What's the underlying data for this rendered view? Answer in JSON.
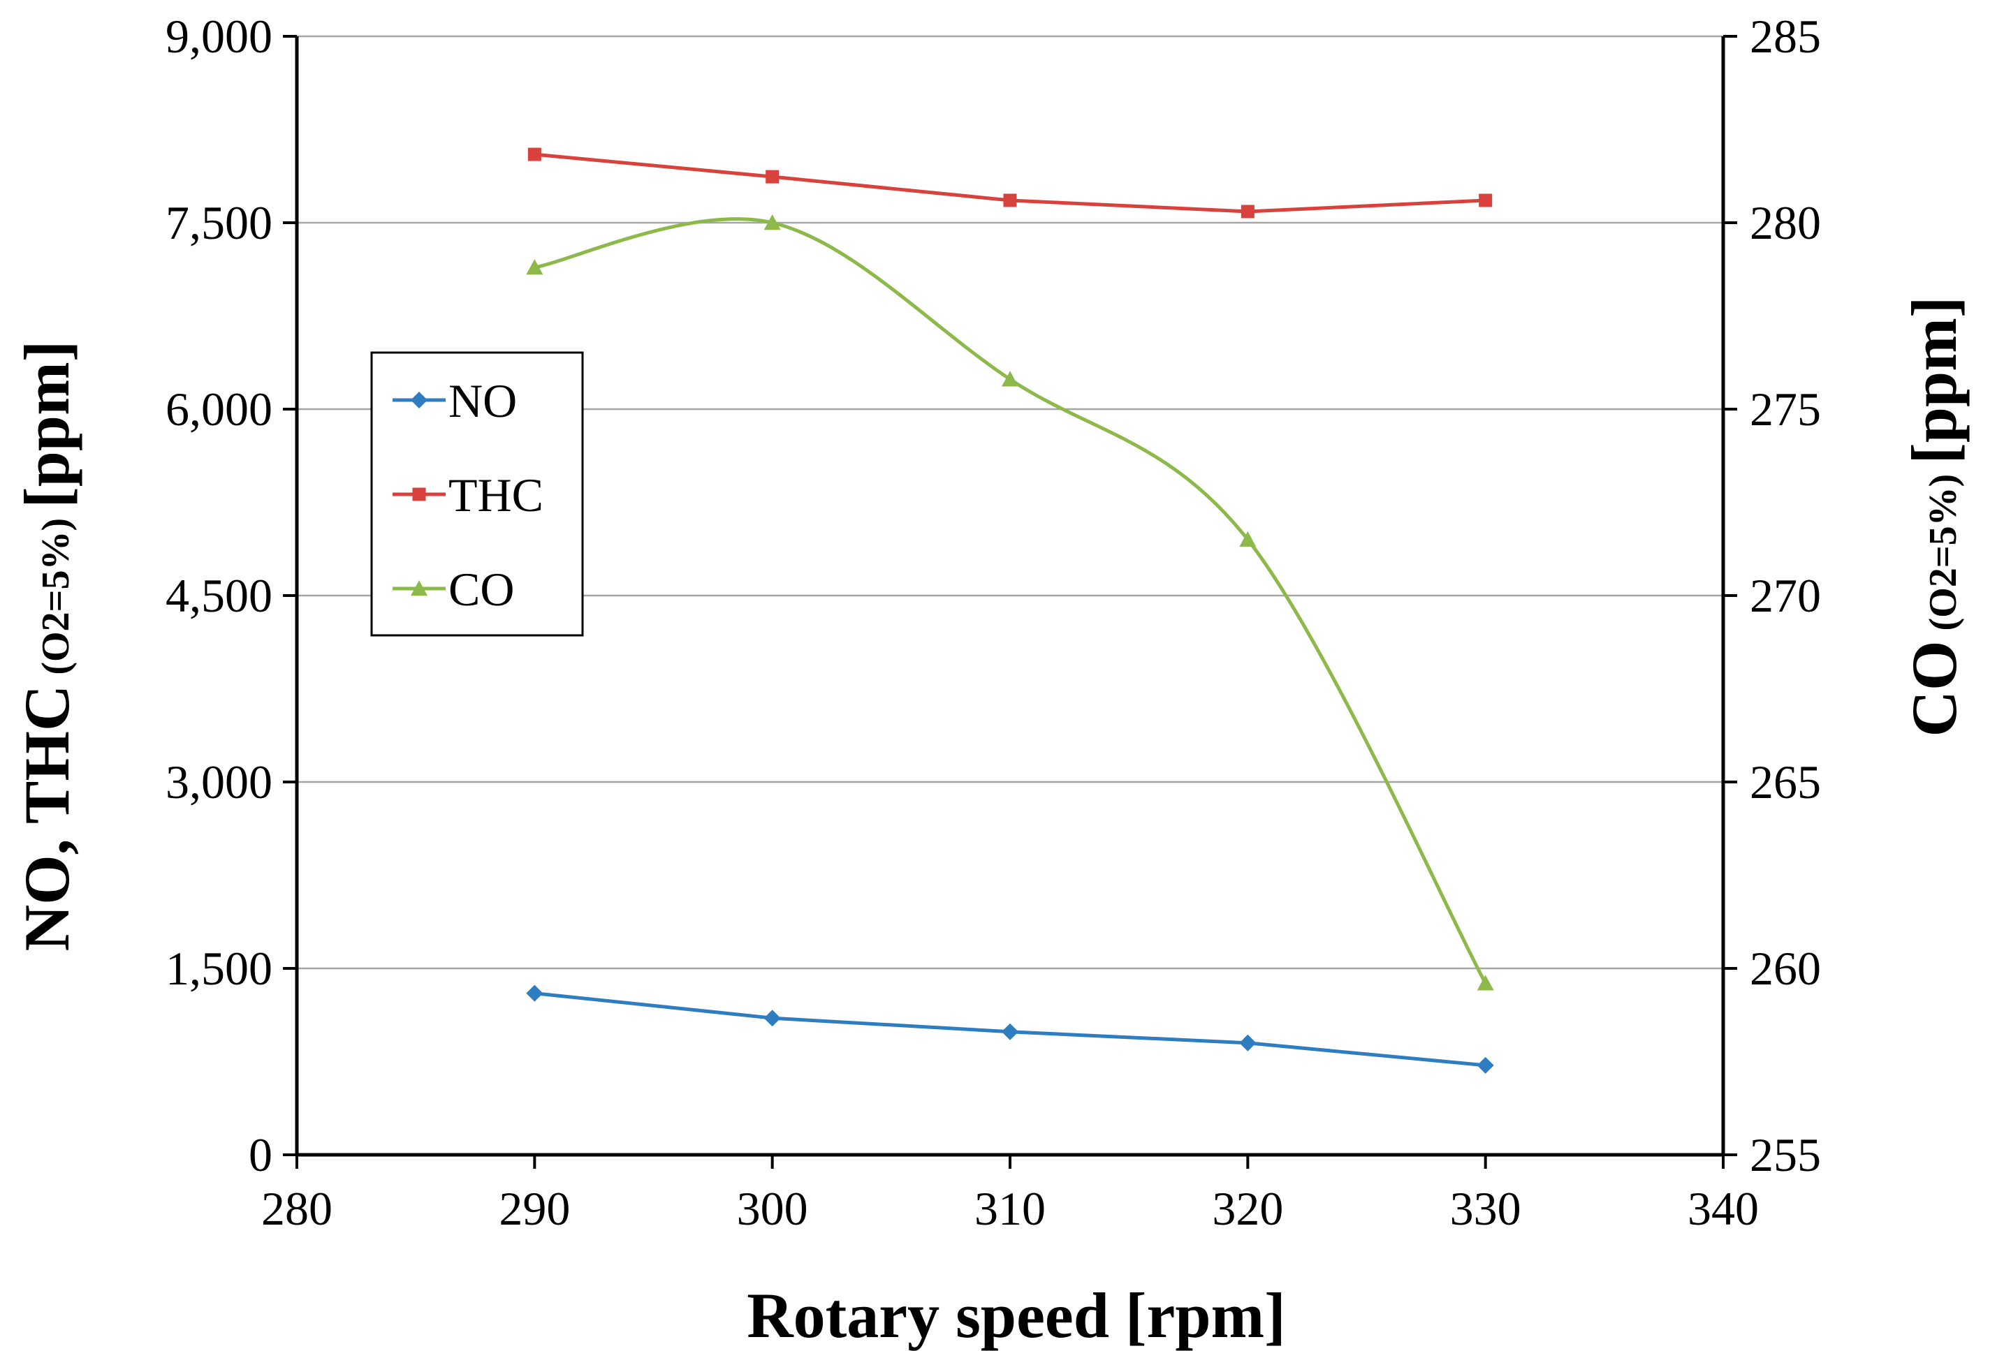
{
  "chart_data": {
    "type": "line",
    "title": "",
    "xlabel": "Rotary speed [rpm]",
    "ylabel": {
      "main": "NO, THC",
      "sub": " (O2=5%) ",
      "unit": "[ppm]"
    },
    "y2label": {
      "main": "CO",
      "sub": " (O2=5%) ",
      "unit": "[ppm]"
    },
    "xlim": [
      280,
      340
    ],
    "ylim": [
      0,
      9000
    ],
    "y2lim": [
      255,
      285
    ],
    "xticks": [
      280,
      290,
      300,
      310,
      320,
      330,
      340
    ],
    "xtick_labels": [
      "280",
      "290",
      "300",
      "310",
      "320",
      "330",
      "340"
    ],
    "yticks": [
      0,
      1500,
      3000,
      4500,
      6000,
      7500,
      9000
    ],
    "ytick_labels": [
      "0",
      "1,500",
      "3,000",
      "4,500",
      "6,000",
      "7,500",
      "9,000"
    ],
    "y2ticks": [
      255,
      260,
      265,
      270,
      275,
      280,
      285
    ],
    "y2tick_labels": [
      "255",
      "260",
      "265",
      "270",
      "275",
      "280",
      "285"
    ],
    "grid": "horizontal",
    "legend": "left, middle",
    "x": [
      290,
      300,
      310,
      320,
      330
    ],
    "series": [
      {
        "name": "NO",
        "axis": "left",
        "marker": "diamond",
        "color": "#2E7DC1",
        "smooth": false,
        "values": [
          1300,
          1100,
          990,
          900,
          720
        ]
      },
      {
        "name": "THC",
        "axis": "left",
        "marker": "square",
        "color": "#D9423C",
        "smooth": false,
        "values": [
          8050,
          7870,
          7680,
          7590,
          7680
        ]
      },
      {
        "name": "CO",
        "axis": "right",
        "marker": "triangle",
        "color": "#8DB84A",
        "smooth": true,
        "values": [
          278.8,
          280.0,
          275.8,
          271.5,
          259.6
        ]
      }
    ]
  }
}
